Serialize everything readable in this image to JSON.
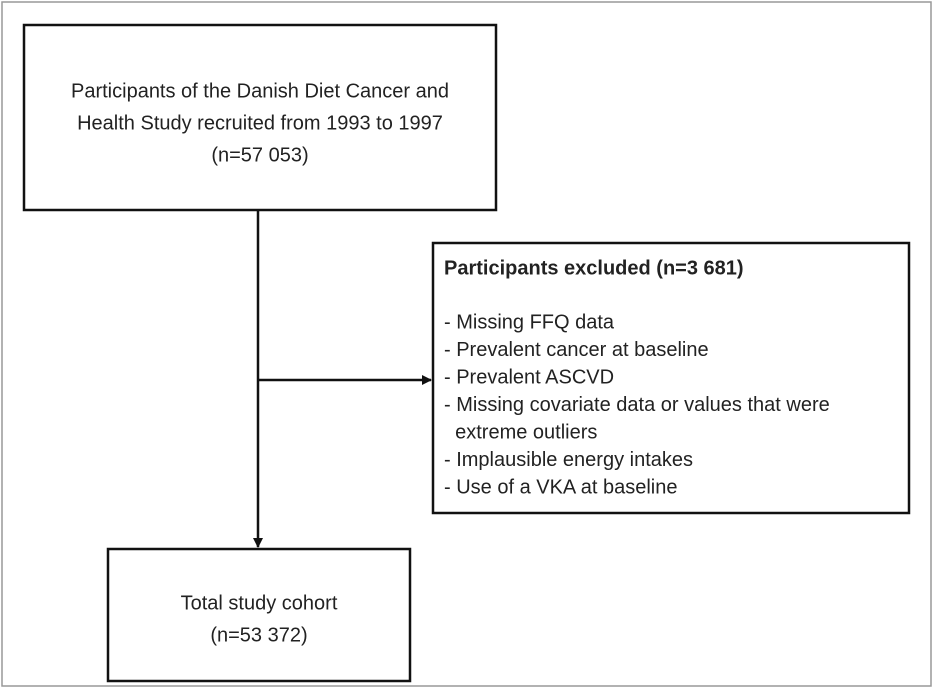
{
  "top_box": {
    "lines": [
      "Participants of the Danish Diet Cancer and",
      "Health Study recruited from 1993 to 1997",
      "(n=57 053)"
    ]
  },
  "exclusion_box": {
    "title": "Participants excluded (n=3 681)",
    "items": [
      [
        "- Missing FFQ data"
      ],
      [
        "- Prevalent cancer at baseline"
      ],
      [
        "- Prevalent ASCVD"
      ],
      [
        "- Missing covariate data or values that were",
        "  extreme outliers"
      ],
      [
        "- Implausible energy intakes"
      ],
      [
        "- Use of a VKA at baseline"
      ]
    ]
  },
  "bottom_box": {
    "lines": [
      "Total study cohort",
      "(n=53 372)"
    ]
  }
}
